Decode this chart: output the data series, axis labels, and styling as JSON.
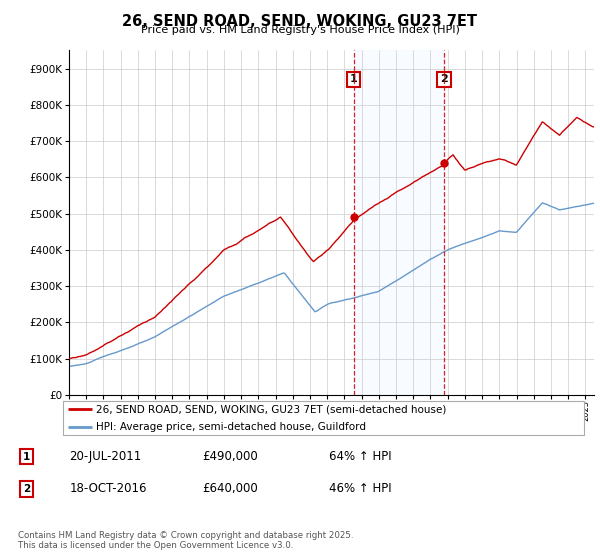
{
  "title": "26, SEND ROAD, SEND, WOKING, GU23 7ET",
  "subtitle": "Price paid vs. HM Land Registry's House Price Index (HPI)",
  "sale1_date": "20-JUL-2011",
  "sale1_price": 490000,
  "sale1_label": "64% ↑ HPI",
  "sale2_date": "18-OCT-2016",
  "sale2_price": 640000,
  "sale2_label": "46% ↑ HPI",
  "legend_house": "26, SEND ROAD, SEND, WOKING, GU23 7ET (semi-detached house)",
  "legend_hpi": "HPI: Average price, semi-detached house, Guildford",
  "footer": "Contains HM Land Registry data © Crown copyright and database right 2025.\nThis data is licensed under the Open Government Licence v3.0.",
  "house_color": "#cc0000",
  "hpi_color": "#6699cc",
  "vline_color": "#cc0000",
  "span_color": "#ddeeff",
  "yticks": [
    0,
    100000,
    200000,
    300000,
    400000,
    500000,
    600000,
    700000,
    800000,
    900000
  ],
  "ytick_labels": [
    "£0",
    "£100K",
    "£200K",
    "£300K",
    "£400K",
    "£500K",
    "£600K",
    "£700K",
    "£800K",
    "£900K"
  ],
  "sale1_year": 2011.54,
  "sale2_year": 2016.79
}
